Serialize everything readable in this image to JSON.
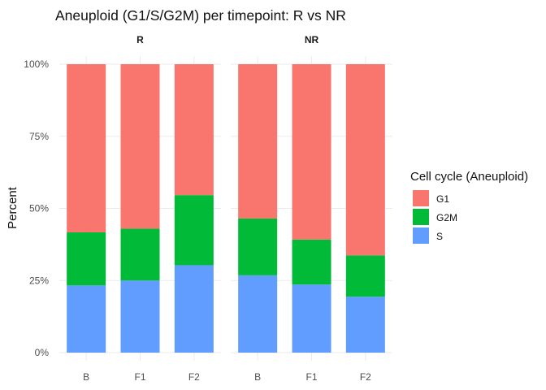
{
  "chart_data": {
    "type": "bar",
    "stacked": true,
    "title": "Aneuploid (G1/S/G2M) per timepoint: R vs NR",
    "ylabel": "Percent",
    "xlabel": "",
    "ylim": [
      0,
      1
    ],
    "yticks": [
      {
        "value": 0,
        "label": "0%"
      },
      {
        "value": 0.25,
        "label": "25%"
      },
      {
        "value": 0.5,
        "label": "50%"
      },
      {
        "value": 0.75,
        "label": "75%"
      },
      {
        "value": 1,
        "label": "100%"
      }
    ],
    "grid": true,
    "legend": {
      "title": "Cell cycle (Aneuploid)",
      "placement": "right",
      "entries": [
        {
          "name": "G1",
          "color": "#F8766D"
        },
        {
          "name": "G2M",
          "color": "#00BA38"
        },
        {
          "name": "S",
          "color": "#619CFF"
        }
      ]
    },
    "stack_order_bottom_to_top": [
      "S",
      "G2M",
      "G1"
    ],
    "facets": [
      {
        "label": "R",
        "categories": [
          "B",
          "F1",
          "F2"
        ],
        "series": [
          {
            "name": "S",
            "color": "#619CFF",
            "values": [
              0.233,
              0.25,
              0.303
            ]
          },
          {
            "name": "G2M",
            "color": "#00BA38",
            "values": [
              0.184,
              0.18,
              0.243
            ]
          },
          {
            "name": "G1",
            "color": "#F8766D",
            "values": [
              0.583,
              0.57,
              0.454
            ]
          }
        ]
      },
      {
        "label": "NR",
        "categories": [
          "B",
          "F1",
          "F2"
        ],
        "series": [
          {
            "name": "S",
            "color": "#619CFF",
            "values": [
              0.268,
              0.236,
              0.194
            ]
          },
          {
            "name": "G2M",
            "color": "#00BA38",
            "values": [
              0.197,
              0.156,
              0.143
            ]
          },
          {
            "name": "G1",
            "color": "#F8766D",
            "values": [
              0.535,
              0.608,
              0.663
            ]
          }
        ]
      }
    ]
  }
}
